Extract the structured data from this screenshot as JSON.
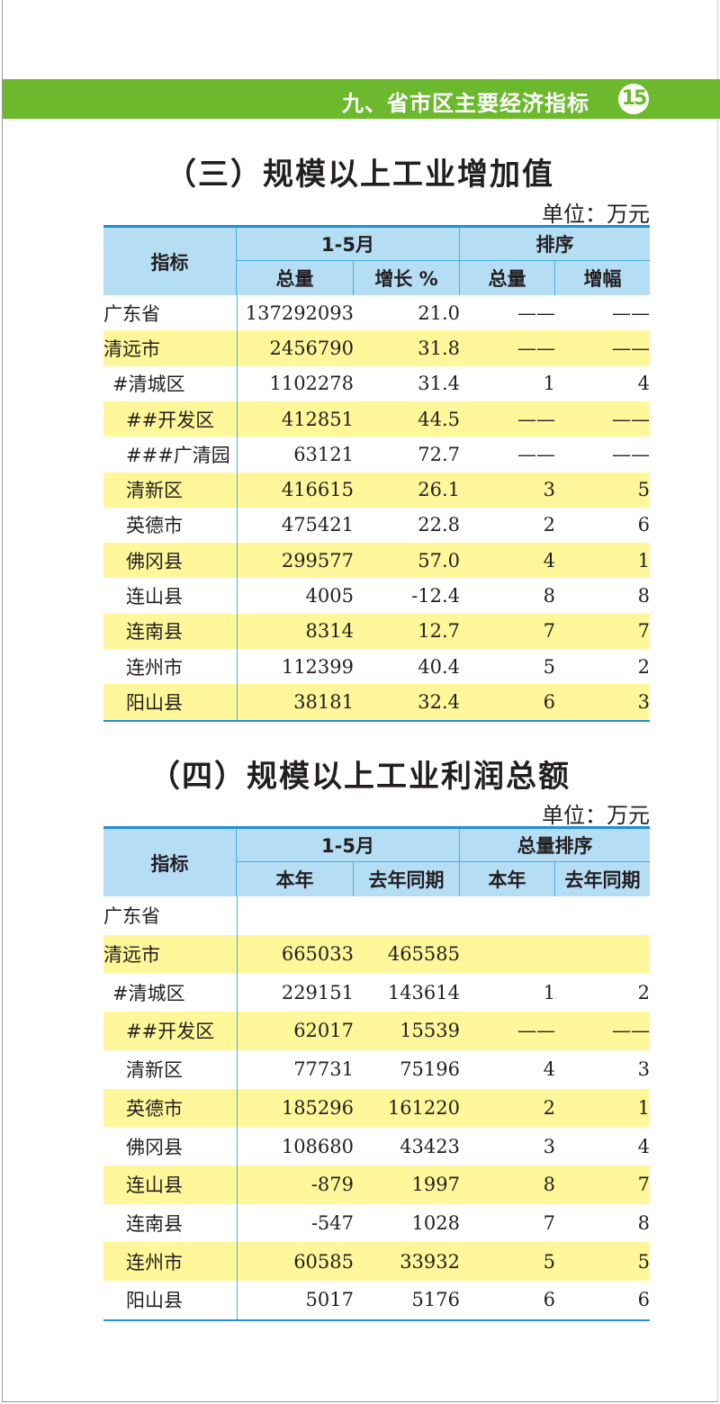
{
  "header": {
    "section": "九、省市区主要经济指标",
    "page": "15"
  },
  "colors": {
    "band": "#6cb92e",
    "header_bg": "#b5def5",
    "highlight": "#fff799",
    "rule": "#1e90d6"
  },
  "table1": {
    "title": "（三）规模以上工业增加值",
    "unit": "单位：万元",
    "headers": {
      "indicator": "指标",
      "period": "1-5月",
      "rank": "排序",
      "c1": "总量",
      "c2": "增长 %",
      "c3": "总量",
      "c4": "增幅"
    },
    "rows": [
      {
        "name": "广东省",
        "level": 0,
        "v": [
          "137292093",
          "21.0",
          "——",
          "——"
        ]
      },
      {
        "name": "清远市",
        "level": 0,
        "v": [
          "2456790",
          "31.8",
          "——",
          "——"
        ]
      },
      {
        "name": "#清城区",
        "level": 1,
        "v": [
          "1102278",
          "31.4",
          "1",
          "4"
        ]
      },
      {
        "name": "##开发区",
        "level": 2,
        "v": [
          "412851",
          "44.5",
          "——",
          "——"
        ]
      },
      {
        "name": "###广清园",
        "level": 2,
        "v": [
          "63121",
          "72.7",
          "——",
          "——"
        ]
      },
      {
        "name": "清新区",
        "level": 2,
        "v": [
          "416615",
          "26.1",
          "3",
          "5"
        ]
      },
      {
        "name": "英德市",
        "level": 2,
        "v": [
          "475421",
          "22.8",
          "2",
          "6"
        ]
      },
      {
        "name": "佛冈县",
        "level": 2,
        "v": [
          "299577",
          "57.0",
          "4",
          "1"
        ]
      },
      {
        "name": "连山县",
        "level": 2,
        "v": [
          "4005",
          "-12.4",
          "8",
          "8"
        ]
      },
      {
        "name": "连南县",
        "level": 2,
        "v": [
          "8314",
          "12.7",
          "7",
          "7"
        ]
      },
      {
        "name": "连州市",
        "level": 2,
        "v": [
          "112399",
          "40.4",
          "5",
          "2"
        ]
      },
      {
        "name": "阳山县",
        "level": 2,
        "v": [
          "38181",
          "32.4",
          "6",
          "3"
        ]
      }
    ]
  },
  "table2": {
    "title": "（四）规模以上工业利润总额",
    "unit": "单位：万元",
    "headers": {
      "indicator": "指标",
      "period": "1-5月",
      "rank": "总量排序",
      "c1": "本年",
      "c2": "去年同期",
      "c3": "本年",
      "c4": "去年同期"
    },
    "rows": [
      {
        "name": "广东省",
        "level": 0,
        "v": [
          "",
          "",
          "",
          ""
        ]
      },
      {
        "name": "清远市",
        "level": 0,
        "v": [
          "665033",
          "465585",
          "",
          ""
        ]
      },
      {
        "name": "#清城区",
        "level": 1,
        "v": [
          "229151",
          "143614",
          "1",
          "2"
        ]
      },
      {
        "name": "##开发区",
        "level": 2,
        "v": [
          "62017",
          "15539",
          "——",
          "——"
        ]
      },
      {
        "name": "清新区",
        "level": 2,
        "v": [
          "77731",
          "75196",
          "4",
          "3"
        ]
      },
      {
        "name": "英德市",
        "level": 2,
        "v": [
          "185296",
          "161220",
          "2",
          "1"
        ]
      },
      {
        "name": "佛冈县",
        "level": 2,
        "v": [
          "108680",
          "43423",
          "3",
          "4"
        ]
      },
      {
        "name": "连山县",
        "level": 2,
        "v": [
          "-879",
          "1997",
          "8",
          "7"
        ]
      },
      {
        "name": "连南县",
        "level": 2,
        "v": [
          "-547",
          "1028",
          "7",
          "8"
        ]
      },
      {
        "name": "连州市",
        "level": 2,
        "v": [
          "60585",
          "33932",
          "5",
          "5"
        ]
      },
      {
        "name": "阳山县",
        "level": 2,
        "v": [
          "5017",
          "5176",
          "6",
          "6"
        ]
      }
    ]
  }
}
